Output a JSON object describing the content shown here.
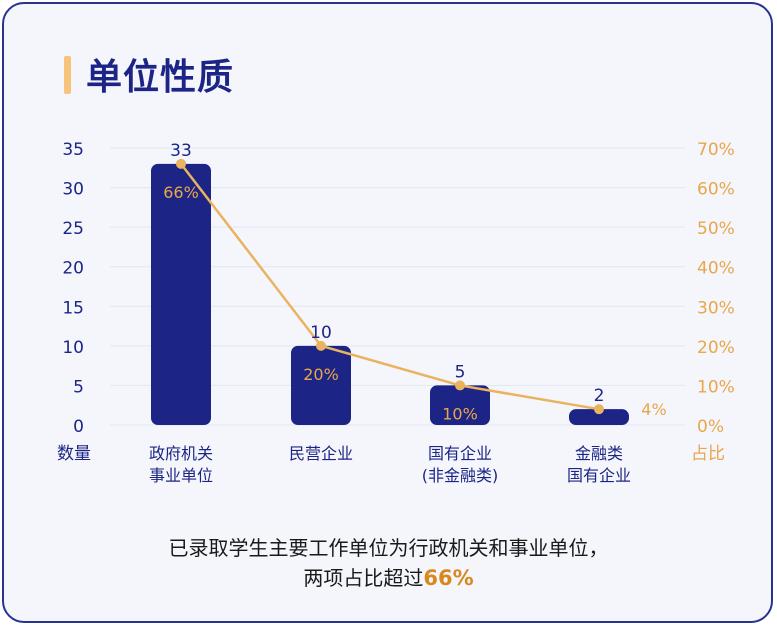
{
  "title": "单位性质",
  "chart_data": {
    "type": "bar",
    "categories": [
      [
        "政府机关",
        "事业单位"
      ],
      [
        "民营企业"
      ],
      [
        "国有企业",
        "(非金融类)"
      ],
      [
        "金融类",
        "国有企业"
      ]
    ],
    "series": [
      {
        "values": [
          33,
          10,
          5,
          2
        ]
      },
      {
        "values": [
          66,
          20,
          10,
          4
        ],
        "unit": "%"
      }
    ],
    "value_labels": [
      "33",
      "10",
      "5",
      "2"
    ],
    "percent_labels": [
      "66%",
      "20%",
      "10%",
      "4%"
    ],
    "y_left": {
      "label": "数量",
      "ylim": [
        0,
        35
      ],
      "ticks": [
        "0",
        "5",
        "10",
        "15",
        "20",
        "25",
        "30",
        "35"
      ]
    },
    "y_right": {
      "label": "占比",
      "ylim": [
        0,
        70
      ],
      "ticks": [
        "0%",
        "10%",
        "20%",
        "30%",
        "40%",
        "50%",
        "60%",
        "70%"
      ]
    },
    "grid": true,
    "colors": {
      "bar": "#1c2585",
      "line": "#e9b35f",
      "axis_left": "#1c2585",
      "axis_right": "#e9a64a"
    }
  },
  "caption": {
    "line1": "已录取学生主要工作单位为行政机关和事业单位，",
    "line2_prefix": "两项占比超过",
    "line2_highlight": "66%"
  }
}
